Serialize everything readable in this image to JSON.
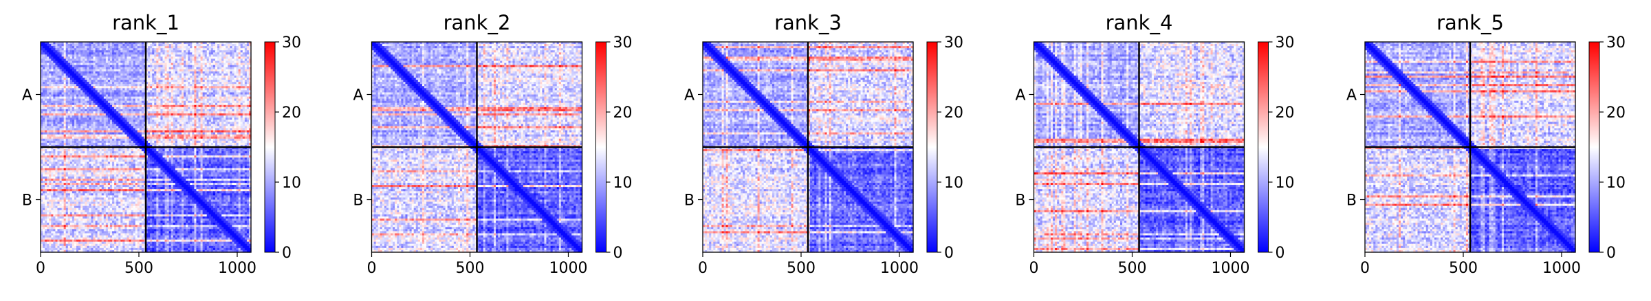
{
  "chart_data": {
    "type": "heatmap",
    "colormap": "bwr",
    "value_range": [
      0,
      30
    ],
    "colorbar_ticks": [
      "0",
      "10",
      "20",
      "30"
    ],
    "x_ticks": [
      "0",
      "500",
      "1000"
    ],
    "x_range": [
      0,
      1070
    ],
    "chain_boundary": 535,
    "y_labels": [
      "A",
      "B"
    ],
    "panels": [
      {
        "title": "rank_1"
      },
      {
        "title": "rank_2"
      },
      {
        "title": "rank_3"
      },
      {
        "title": "rank_4"
      },
      {
        "title": "rank_5"
      }
    ]
  }
}
